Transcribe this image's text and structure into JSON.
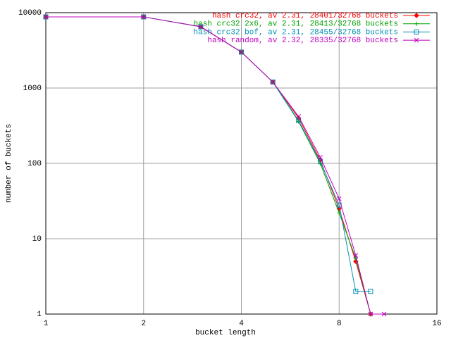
{
  "chart_data": {
    "type": "line",
    "xlabel": "bucket length",
    "ylabel": "number of buckets",
    "x": [
      1,
      2,
      3,
      4,
      5,
      6,
      7,
      8,
      9,
      10,
      11
    ],
    "series": [
      {
        "name": "hash crc32, av 2.31, 28401/32768 buckets",
        "color": "#ff0000",
        "marker": "diamond",
        "values": [
          8800,
          8800,
          6500,
          3000,
          1200,
          400,
          110,
          25,
          5,
          1,
          null
        ]
      },
      {
        "name": "hash crc32 2x6, av 2.31, 28413/32768 buckets",
        "color": "#00a000",
        "marker": "plus",
        "values": [
          8800,
          8800,
          6500,
          3000,
          1200,
          360,
          100,
          22,
          5.5,
          1,
          null
        ]
      },
      {
        "name": "hash crc32 bof, av 2.31, 28455/32768 buckets",
        "color": "#0090b0",
        "marker": "square",
        "values": [
          8800,
          8800,
          6500,
          3000,
          1200,
          370,
          105,
          28,
          2,
          2,
          null
        ]
      },
      {
        "name": "hash random, av 2.32, 28335/32768 buckets",
        "color": "#c000c0",
        "marker": "cross",
        "values": [
          8800,
          8800,
          6500,
          3000,
          1200,
          420,
          120,
          34,
          6,
          1,
          1
        ]
      }
    ],
    "xscale": "log",
    "yscale": "log",
    "xlim": [
      1,
      16
    ],
    "xticks": [
      1,
      2,
      4,
      8,
      16
    ],
    "ylim": [
      1,
      10000
    ],
    "yticks": [
      1,
      10,
      100,
      1000,
      10000
    ],
    "grid": true,
    "legend": "top-right"
  }
}
